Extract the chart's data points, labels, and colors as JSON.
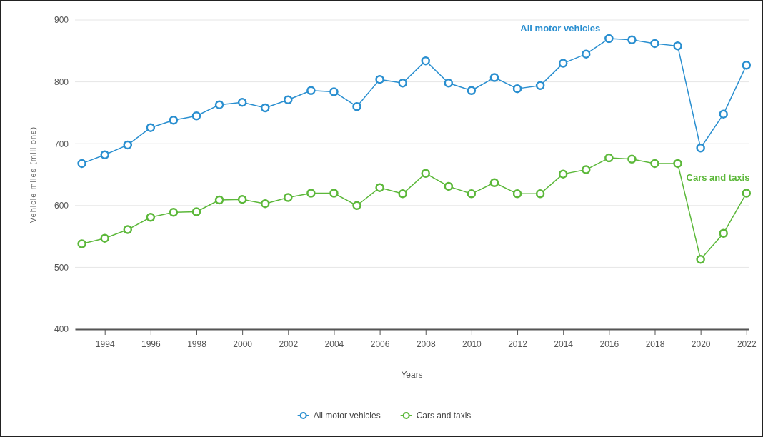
{
  "chart_data": {
    "type": "line",
    "xlabel": "Years",
    "ylabel": "Vehicle miles (millions)",
    "x": [
      1993,
      1994,
      1995,
      1996,
      1997,
      1998,
      1999,
      2000,
      2001,
      2002,
      2003,
      2004,
      2005,
      2006,
      2007,
      2008,
      2009,
      2010,
      2011,
      2012,
      2013,
      2014,
      2015,
      2016,
      2017,
      2018,
      2019,
      2020,
      2021,
      2022
    ],
    "series": [
      {
        "name": "All motor vehicles",
        "color": "#2a8fd0",
        "values": [
          668,
          682,
          698,
          726,
          738,
          745,
          763,
          767,
          758,
          771,
          786,
          784,
          760,
          804,
          798,
          834,
          798,
          786,
          807,
          789,
          794,
          830,
          845,
          870,
          868,
          862,
          858,
          693,
          748,
          827
        ]
      },
      {
        "name": "Cars and taxis",
        "color": "#5cb83a",
        "values": [
          538,
          547,
          561,
          581,
          589,
          590,
          609,
          610,
          603,
          613,
          620,
          620,
          600,
          629,
          619,
          652,
          631,
          619,
          637,
          619,
          619,
          651,
          658,
          677,
          675,
          668,
          668,
          513,
          555,
          620
        ]
      }
    ],
    "xlim": [
      1992.7,
      2022.1
    ],
    "xticks": [
      1994,
      1996,
      1998,
      2000,
      2002,
      2004,
      2006,
      2008,
      2010,
      2012,
      2014,
      2016,
      2018,
      2020,
      2022
    ],
    "ylim": [
      400,
      900
    ],
    "yticks": [
      400,
      500,
      600,
      700,
      800,
      900
    ],
    "grid": "y",
    "legend": "bottom",
    "marker": "circle",
    "line_style": "solid"
  }
}
